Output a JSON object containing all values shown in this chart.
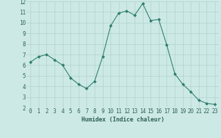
{
  "title": "",
  "xlabel": "Humidex (Indice chaleur)",
  "ylabel": "",
  "x": [
    0,
    1,
    2,
    3,
    4,
    5,
    6,
    7,
    8,
    9,
    10,
    11,
    12,
    13,
    14,
    15,
    16,
    17,
    18,
    19,
    20,
    21,
    22,
    23
  ],
  "y": [
    6.3,
    6.8,
    7.0,
    6.5,
    6.0,
    4.8,
    4.2,
    3.8,
    4.5,
    6.8,
    9.7,
    10.9,
    11.1,
    10.7,
    11.8,
    10.2,
    10.3,
    7.9,
    5.2,
    4.2,
    3.5,
    2.7,
    2.4,
    2.3
  ],
  "line_color": "#2e7d6e",
  "marker": "D",
  "marker_size": 2.0,
  "bg_color": "#cce9e5",
  "grid_color": "#b0d0cc",
  "tick_label_color": "#2e5f58",
  "axis_label_color": "#2e5f58",
  "ylim": [
    2,
    12
  ],
  "yticks": [
    2,
    3,
    4,
    5,
    6,
    7,
    8,
    9,
    10,
    11,
    12
  ],
  "xlim": [
    -0.5,
    23.5
  ],
  "label_fontsize": 5.5,
  "tick_fontsize": 5.5,
  "xlabel_fontsize": 6.0,
  "linewidth": 0.8
}
